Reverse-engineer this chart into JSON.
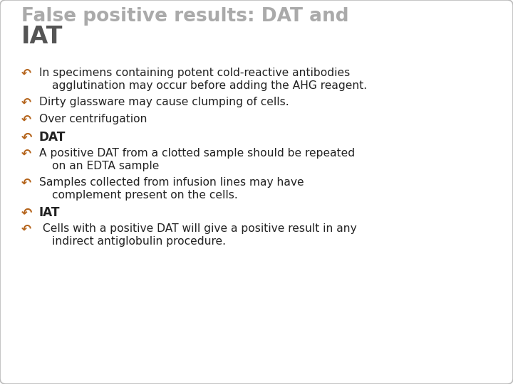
{
  "title_line1": "False positive results: DAT and",
  "title_line2": "IAT",
  "title_color": "#aaaaaa",
  "title_line2_color": "#555555",
  "background_color": "#ffffff",
  "border_color": "#bbbbbb",
  "bullet_color": "#b5651d",
  "text_color": "#222222",
  "figsize": [
    7.2,
    5.4
  ],
  "dpi": 100,
  "bullets": [
    {
      "bold": false,
      "multiline": true,
      "line1": "In specimens containing potent cold-reactive antibodies",
      "line2": "agglutination may occur before adding the AHG reagent."
    },
    {
      "bold": false,
      "multiline": false,
      "line1": "Dirty glassware may cause clumping of cells.",
      "line2": ""
    },
    {
      "bold": false,
      "multiline": false,
      "line1": "Over centrifugation",
      "line2": ""
    },
    {
      "bold": true,
      "multiline": false,
      "line1": "DAT",
      "line2": ""
    },
    {
      "bold": false,
      "multiline": true,
      "line1": "A positive DAT from a clotted sample should be repeated",
      "line2": "on an EDTA sample"
    },
    {
      "bold": false,
      "multiline": true,
      "line1": "Samples collected from infusion lines may have",
      "line2": "complement present on the cells."
    },
    {
      "bold": true,
      "multiline": false,
      "line1": "IAT",
      "line2": ""
    },
    {
      "bold": false,
      "multiline": true,
      "line1": " Cells with a positive DAT will give a positive result in any",
      "line2": "indirect antiglobulin procedure."
    }
  ]
}
